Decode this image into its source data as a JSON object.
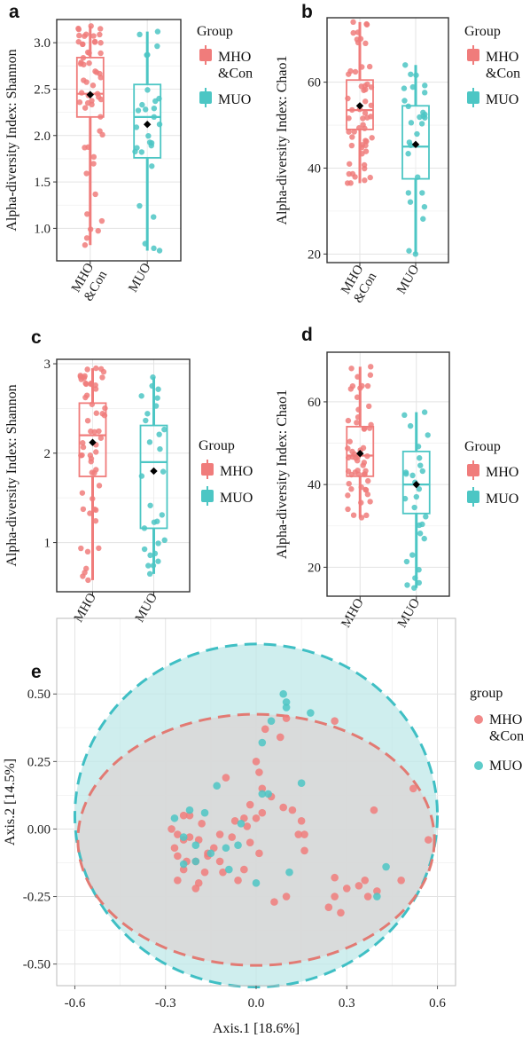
{
  "colors": {
    "red": "#f07c7b",
    "teal": "#4cc6c4",
    "ellipse_red_dash": "#e27a73",
    "ellipse_teal_dash": "#3fbfc4",
    "ellipse_teal_fill": "#bfe8e8",
    "ellipse_grey_fill": "#d9d9d9"
  },
  "chart_data": [
    {
      "panel": "a",
      "type": "box",
      "categories": [
        "MHO\n&Con",
        "MUO"
      ],
      "ylabel": "Alpha-diversity Index: Shannon",
      "ylim": [
        0.65,
        3.25
      ],
      "yticks": [
        1.0,
        1.5,
        2.0,
        2.5,
        3.0
      ],
      "ytick_labels": [
        "1.0",
        "1.5",
        "2.0",
        "2.5",
        "3.0"
      ],
      "legend": {
        "title": "Group",
        "entries": [
          "MHO\n&Con",
          "MUO"
        ]
      },
      "boxes": [
        {
          "name": "MHO\n&Con",
          "color": "#f07c7b",
          "whisker_low": 0.82,
          "q1": 2.2,
          "median": 2.45,
          "q3": 2.84,
          "whisker_high": 3.18,
          "mean": 2.44
        },
        {
          "name": "MUO",
          "color": "#4cc6c4",
          "whisker_low": 0.76,
          "q1": 1.76,
          "median": 2.2,
          "q3": 2.55,
          "whisker_high": 3.12,
          "mean": 2.12
        }
      ]
    },
    {
      "panel": "b",
      "type": "box",
      "categories": [
        "MHO\n&Con",
        "MUO"
      ],
      "ylabel": "Alpha-diversity Index: Chao1",
      "ylim": [
        18,
        75
      ],
      "yticks": [
        20,
        40,
        60
      ],
      "ytick_labels": [
        "20",
        "40",
        "60"
      ],
      "legend": {
        "title": "Group",
        "entries": [
          "MHO\n&Con",
          "MUO"
        ]
      },
      "boxes": [
        {
          "name": "MHO\n&Con",
          "color": "#f07c7b",
          "whisker_low": 36.5,
          "q1": 49,
          "median": 53.5,
          "q3": 60.5,
          "whisker_high": 74,
          "mean": 54.5
        },
        {
          "name": "MUO",
          "color": "#4cc6c4",
          "whisker_low": 20,
          "q1": 37.5,
          "median": 45,
          "q3": 54.5,
          "whisker_high": 64,
          "mean": 45.5
        }
      ]
    },
    {
      "panel": "c",
      "type": "box",
      "categories": [
        "MHO",
        "MUO"
      ],
      "ylabel": "Alpha-diversity Index: Shannon",
      "ylim": [
        0.45,
        3.05
      ],
      "yticks": [
        1,
        2,
        3
      ],
      "ytick_labels": [
        "1",
        "2",
        "3"
      ],
      "legend": {
        "title": "Group",
        "entries": [
          "MHO",
          "MUO"
        ]
      },
      "boxes": [
        {
          "name": "MHO",
          "color": "#f07c7b",
          "whisker_low": 0.58,
          "q1": 1.74,
          "median": 2.2,
          "q3": 2.56,
          "whisker_high": 2.95,
          "mean": 2.12
        },
        {
          "name": "MUO",
          "color": "#4cc6c4",
          "whisker_low": 0.65,
          "q1": 1.16,
          "median": 1.9,
          "q3": 2.31,
          "whisker_high": 2.85,
          "mean": 1.8
        }
      ]
    },
    {
      "panel": "d",
      "type": "box",
      "categories": [
        "MHO",
        "MUO"
      ],
      "ylabel": "Alpha-diversity Index: Chao1",
      "ylim": [
        13,
        72
      ],
      "yticks": [
        20,
        40,
        60
      ],
      "ytick_labels": [
        "20",
        "40",
        "60"
      ],
      "legend": {
        "title": "Group",
        "entries": [
          "MHO",
          "MUO"
        ]
      },
      "boxes": [
        {
          "name": "MHO",
          "color": "#f07c7b",
          "whisker_low": 32,
          "q1": 42,
          "median": 47,
          "q3": 54,
          "whisker_high": 68.5,
          "mean": 47.5
        },
        {
          "name": "MUO",
          "color": "#4cc6c4",
          "whisker_low": 15,
          "q1": 33,
          "median": 40,
          "q3": 48,
          "whisker_high": 57.5,
          "mean": 40
        }
      ]
    },
    {
      "panel": "e",
      "type": "scatter",
      "xlabel": "Axis.1   [18.6%]",
      "ylabel": "Axis.2   [14.5%]",
      "xlim": [
        -0.66,
        0.66
      ],
      "ylim": [
        -0.58,
        0.78
      ],
      "xticks": [
        -0.6,
        -0.3,
        0.0,
        0.3,
        0.6
      ],
      "xtick_labels": [
        "-0.6",
        "-0.3",
        "0.0",
        "0.3",
        "0.6"
      ],
      "yticks": [
        -0.5,
        -0.25,
        0.0,
        0.25,
        0.5
      ],
      "ytick_labels": [
        "-0.50",
        "-0.25",
        "0.00",
        "0.25",
        "0.50"
      ],
      "legend": {
        "title": "group",
        "entries": [
          "MHO\n&Con",
          "MUO"
        ]
      },
      "ellipses": [
        {
          "name": "MUO",
          "cx": 0.0,
          "cy": 0.05,
          "rx": 0.6,
          "ry": 0.635
        },
        {
          "name": "MHO\n&Con",
          "cx": 0.0,
          "cy": -0.04,
          "rx": 0.59,
          "ry": 0.465
        }
      ],
      "series": [
        {
          "name": "MHO\n&Con",
          "color": "#f07c7b",
          "points": [
            [
              0.1,
              0.41
            ],
            [
              0.26,
              0.4
            ],
            [
              0.03,
              0.37
            ],
            [
              0.08,
              0.34
            ],
            [
              0.0,
              0.25
            ],
            [
              0.01,
              0.21
            ],
            [
              0.05,
              0.12
            ],
            [
              0.02,
              0.15
            ],
            [
              -0.1,
              0.19
            ],
            [
              -0.02,
              0.09
            ],
            [
              0.09,
              0.08
            ],
            [
              0.12,
              0.07
            ],
            [
              0.15,
              0.03
            ],
            [
              0.16,
              -0.02
            ],
            [
              0.14,
              -0.02
            ],
            [
              -0.28,
              0.0
            ],
            [
              -0.26,
              -0.02
            ],
            [
              -0.22,
              -0.03
            ],
            [
              -0.19,
              -0.04
            ],
            [
              -0.12,
              -0.02
            ],
            [
              -0.08,
              -0.03
            ],
            [
              -0.07,
              0.03
            ],
            [
              -0.04,
              0.04
            ],
            [
              -0.03,
              0.01
            ],
            [
              0.0,
              0.04
            ],
            [
              0.02,
              0.06
            ],
            [
              -0.02,
              -0.05
            ],
            [
              -0.14,
              -0.07
            ],
            [
              -0.16,
              -0.1
            ],
            [
              -0.2,
              -0.12
            ],
            [
              -0.23,
              -0.12
            ],
            [
              -0.26,
              -0.1
            ],
            [
              -0.27,
              -0.07
            ],
            [
              -0.22,
              0.05
            ],
            [
              -0.18,
              0.02
            ],
            [
              -0.24,
              0.05
            ],
            [
              -0.11,
              -0.16
            ],
            [
              -0.06,
              -0.19
            ],
            [
              -0.04,
              -0.15
            ],
            [
              -0.12,
              -0.12
            ],
            [
              -0.17,
              -0.16
            ],
            [
              -0.19,
              -0.2
            ],
            [
              -0.2,
              -0.22
            ],
            [
              -0.26,
              -0.19
            ],
            [
              -0.24,
              -0.15
            ],
            [
              -0.16,
              -0.09
            ],
            [
              0.06,
              -0.27
            ],
            [
              0.1,
              -0.25
            ],
            [
              0.26,
              -0.18
            ],
            [
              0.3,
              -0.22
            ],
            [
              0.34,
              -0.21
            ],
            [
              0.36,
              -0.19
            ],
            [
              0.4,
              -0.23
            ],
            [
              0.37,
              -0.25
            ],
            [
              0.26,
              -0.25
            ],
            [
              0.24,
              -0.29
            ],
            [
              0.28,
              -0.31
            ],
            [
              0.48,
              -0.19
            ],
            [
              0.52,
              0.15
            ],
            [
              0.57,
              -0.04
            ],
            [
              0.39,
              0.07
            ],
            [
              -0.24,
              -0.04
            ],
            [
              0.01,
              -0.09
            ],
            [
              0.16,
              -0.08
            ]
          ]
        },
        {
          "name": "MUO",
          "color": "#4cc6c4",
          "points": [
            [
              0.09,
              0.5
            ],
            [
              0.1,
              0.45
            ],
            [
              0.18,
              0.43
            ],
            [
              0.1,
              0.47
            ],
            [
              0.05,
              0.4
            ],
            [
              0.02,
              0.32
            ],
            [
              0.15,
              0.17
            ],
            [
              -0.13,
              0.16
            ],
            [
              0.02,
              0.13
            ],
            [
              0.04,
              0.13
            ],
            [
              -0.22,
              0.07
            ],
            [
              -0.27,
              0.04
            ],
            [
              -0.24,
              -0.03
            ],
            [
              -0.2,
              -0.06
            ],
            [
              -0.1,
              -0.07
            ],
            [
              -0.06,
              -0.06
            ],
            [
              -0.15,
              -0.09
            ],
            [
              -0.24,
              -0.13
            ],
            [
              -0.05,
              0.02
            ],
            [
              -0.17,
              0.06
            ],
            [
              -0.2,
              -0.12
            ],
            [
              0.11,
              -0.16
            ],
            [
              0.0,
              -0.2
            ],
            [
              0.43,
              -0.14
            ],
            [
              0.4,
              -0.25
            ],
            [
              -0.09,
              -0.15
            ]
          ]
        }
      ]
    }
  ]
}
